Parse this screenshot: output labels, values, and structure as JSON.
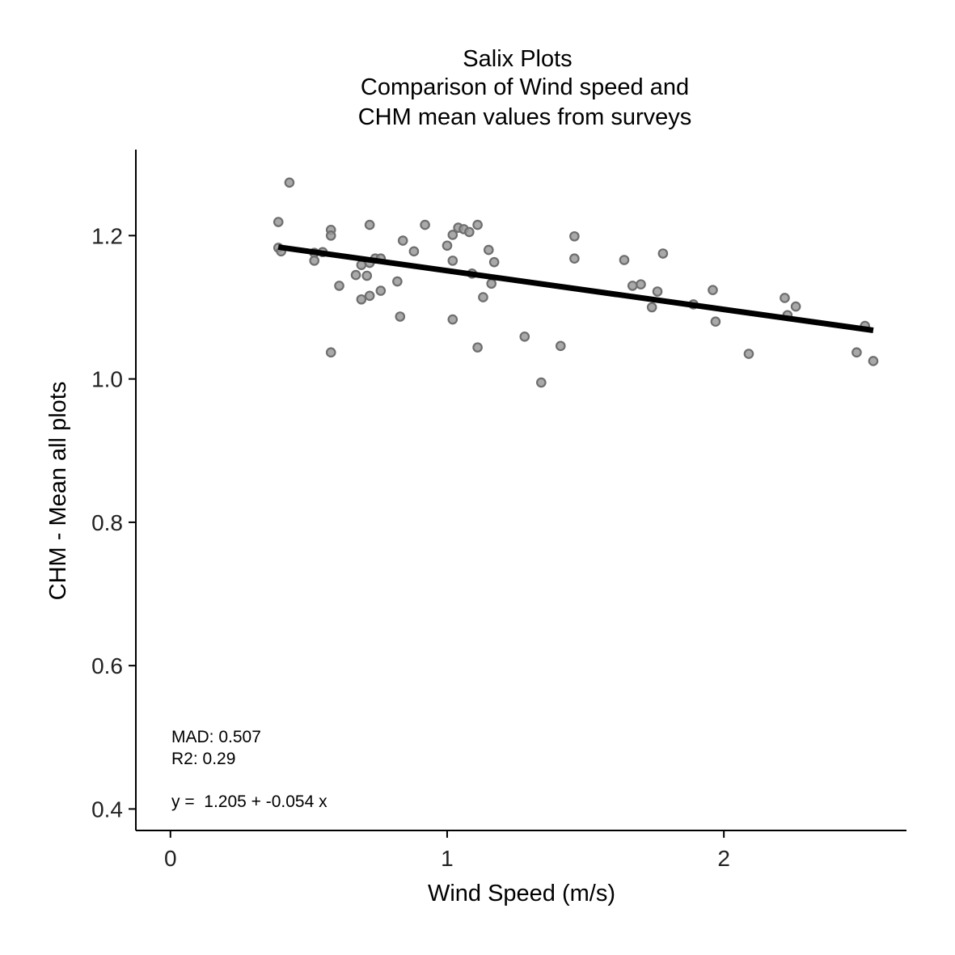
{
  "chart_data": {
    "type": "scatter",
    "title_lines": [
      "Salix Plots",
      "Comparison of Wind speed and",
      "CHM mean values from surveys"
    ],
    "xlabel": "Wind Speed (m/s)",
    "ylabel": "CHM - Mean all plots",
    "xlim": [
      -0.125,
      2.66
    ],
    "ylim": [
      0.37,
      1.32
    ],
    "xticks": [
      0,
      1,
      2
    ],
    "xtick_labels": [
      "0",
      "1",
      "2"
    ],
    "yticks": [
      0.4,
      0.6,
      0.8,
      1.0,
      1.2
    ],
    "ytick_labels": [
      "0.4",
      "0.6",
      "0.8",
      "1.0",
      "1.2"
    ],
    "grid": false,
    "point_color": "#9a9a9a",
    "points": [
      {
        "x": 0.39,
        "y": 1.219
      },
      {
        "x": 0.39,
        "y": 1.183
      },
      {
        "x": 0.4,
        "y": 1.178
      },
      {
        "x": 0.43,
        "y": 1.274
      },
      {
        "x": 0.52,
        "y": 1.176
      },
      {
        "x": 0.52,
        "y": 1.165
      },
      {
        "x": 0.55,
        "y": 1.177
      },
      {
        "x": 0.58,
        "y": 1.208
      },
      {
        "x": 0.58,
        "y": 1.2
      },
      {
        "x": 0.58,
        "y": 1.037
      },
      {
        "x": 0.61,
        "y": 1.13
      },
      {
        "x": 0.67,
        "y": 1.145
      },
      {
        "x": 0.69,
        "y": 1.159
      },
      {
        "x": 0.69,
        "y": 1.111
      },
      {
        "x": 0.71,
        "y": 1.144
      },
      {
        "x": 0.72,
        "y": 1.162
      },
      {
        "x": 0.72,
        "y": 1.116
      },
      {
        "x": 0.72,
        "y": 1.215
      },
      {
        "x": 0.74,
        "y": 1.168
      },
      {
        "x": 0.76,
        "y": 1.168
      },
      {
        "x": 0.76,
        "y": 1.123
      },
      {
        "x": 0.82,
        "y": 1.136
      },
      {
        "x": 0.83,
        "y": 1.087
      },
      {
        "x": 0.84,
        "y": 1.193
      },
      {
        "x": 0.88,
        "y": 1.178
      },
      {
        "x": 0.92,
        "y": 1.215
      },
      {
        "x": 1.0,
        "y": 1.186
      },
      {
        "x": 1.02,
        "y": 1.201
      },
      {
        "x": 1.02,
        "y": 1.165
      },
      {
        "x": 1.02,
        "y": 1.083
      },
      {
        "x": 1.04,
        "y": 1.211
      },
      {
        "x": 1.06,
        "y": 1.209
      },
      {
        "x": 1.08,
        "y": 1.205
      },
      {
        "x": 1.09,
        "y": 1.147
      },
      {
        "x": 1.11,
        "y": 1.215
      },
      {
        "x": 1.11,
        "y": 1.044
      },
      {
        "x": 1.13,
        "y": 1.114
      },
      {
        "x": 1.15,
        "y": 1.18
      },
      {
        "x": 1.16,
        "y": 1.133
      },
      {
        "x": 1.17,
        "y": 1.163
      },
      {
        "x": 1.28,
        "y": 1.059
      },
      {
        "x": 1.34,
        "y": 0.995
      },
      {
        "x": 1.41,
        "y": 1.046
      },
      {
        "x": 1.46,
        "y": 1.199
      },
      {
        "x": 1.46,
        "y": 1.168
      },
      {
        "x": 1.64,
        "y": 1.166
      },
      {
        "x": 1.67,
        "y": 1.13
      },
      {
        "x": 1.7,
        "y": 1.132
      },
      {
        "x": 1.74,
        "y": 1.1
      },
      {
        "x": 1.76,
        "y": 1.122
      },
      {
        "x": 1.78,
        "y": 1.175
      },
      {
        "x": 1.89,
        "y": 1.104
      },
      {
        "x": 1.96,
        "y": 1.124
      },
      {
        "x": 1.97,
        "y": 1.08
      },
      {
        "x": 2.09,
        "y": 1.035
      },
      {
        "x": 2.22,
        "y": 1.113
      },
      {
        "x": 2.23,
        "y": 1.089
      },
      {
        "x": 2.26,
        "y": 1.101
      },
      {
        "x": 2.48,
        "y": 1.037
      },
      {
        "x": 2.51,
        "y": 1.074
      },
      {
        "x": 2.54,
        "y": 1.025
      }
    ],
    "fit_line": {
      "intercept": 1.205,
      "slope": -0.054,
      "x_start": 0.39,
      "x_end": 2.54
    },
    "annotations": {
      "mad": "MAD: 0.507",
      "r2": "R2: 0.29",
      "equation": "y =  1.205 + -0.054 x"
    }
  }
}
